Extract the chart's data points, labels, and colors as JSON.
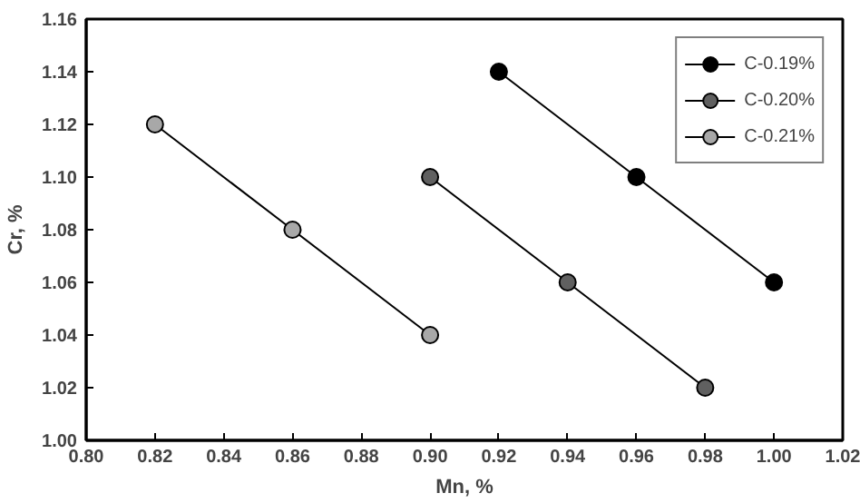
{
  "chart_data": {
    "type": "line",
    "xlabel": "Mn, %",
    "ylabel": "Cr, %",
    "marker": "circle",
    "line_style": "solid",
    "grid": false,
    "legend": "top right",
    "xlim": [
      0.8,
      1.02
    ],
    "ylim": [
      1.0,
      1.16
    ],
    "xticks": [
      {
        "value": 0.8,
        "label": "0.80"
      },
      {
        "value": 0.82,
        "label": "0.82"
      },
      {
        "value": 0.84,
        "label": "0.84"
      },
      {
        "value": 0.86,
        "label": "0.86"
      },
      {
        "value": 0.88,
        "label": "0.88"
      },
      {
        "value": 0.9,
        "label": "0.90"
      },
      {
        "value": 0.92,
        "label": "0.92"
      },
      {
        "value": 0.94,
        "label": "0.94"
      },
      {
        "value": 0.96,
        "label": "0.96"
      },
      {
        "value": 0.98,
        "label": "0.98"
      },
      {
        "value": 1.0,
        "label": "1.00"
      },
      {
        "value": 1.02,
        "label": "1.02"
      }
    ],
    "yticks": [
      {
        "value": 1.0,
        "label": "1.00"
      },
      {
        "value": 1.02,
        "label": "1.02"
      },
      {
        "value": 1.04,
        "label": "1.04"
      },
      {
        "value": 1.06,
        "label": "1.06"
      },
      {
        "value": 1.08,
        "label": "1.08"
      },
      {
        "value": 1.1,
        "label": "1.10"
      },
      {
        "value": 1.12,
        "label": "1.12"
      },
      {
        "value": 1.14,
        "label": "1.14"
      },
      {
        "value": 1.16,
        "label": "1.16"
      }
    ],
    "series": [
      {
        "name": "C-0.19%",
        "color": "#000000",
        "x": [
          0.92,
          0.96,
          1.0
        ],
        "values": [
          1.14,
          1.1,
          1.06
        ]
      },
      {
        "name": "C-0.20%",
        "color": "#606060",
        "x": [
          0.9,
          0.94,
          0.98
        ],
        "values": [
          1.1,
          1.06,
          1.02
        ]
      },
      {
        "name": "C-0.21%",
        "color": "#a8a8a8",
        "x": [
          0.82,
          0.86,
          0.9
        ],
        "values": [
          1.12,
          1.08,
          1.04
        ]
      }
    ]
  }
}
